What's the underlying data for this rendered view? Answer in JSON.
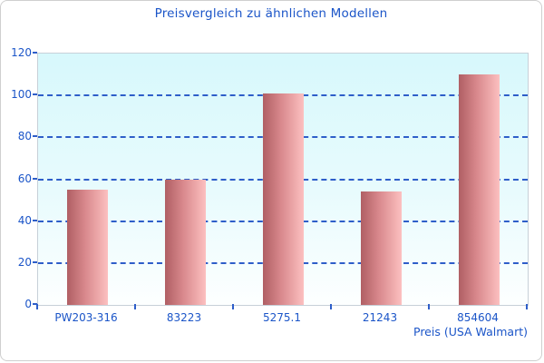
{
  "chart_data": {
    "type": "bar",
    "title": "Preisvergleich zu ähnlichen Modellen",
    "categories": [
      "PW203-316",
      "83223",
      "5275.1",
      "21243",
      "854604"
    ],
    "values": [
      55,
      60,
      101,
      54,
      110
    ],
    "xlabel": "Preis (USA Walmart)",
    "ylabel": "",
    "ylim": [
      0,
      120
    ],
    "ytick_step": 20,
    "yticks": [
      0,
      20,
      40,
      60,
      80,
      100,
      120
    ],
    "grid": "horizontal dashed lines at 20,40,60,80,100",
    "legend": "none"
  },
  "colors": {
    "text_blue": "#1b55c8",
    "gridline_blue": "#2e5ec9",
    "bar_gradient_dark": "#b05f64",
    "bar_gradient_light": "#fcc0c0",
    "plot_bg_top": "#d7f8fc",
    "plot_bg_bottom": "#fdffff",
    "plot_border": "#c7d0d8",
    "card_border": "#cfcfcf"
  }
}
